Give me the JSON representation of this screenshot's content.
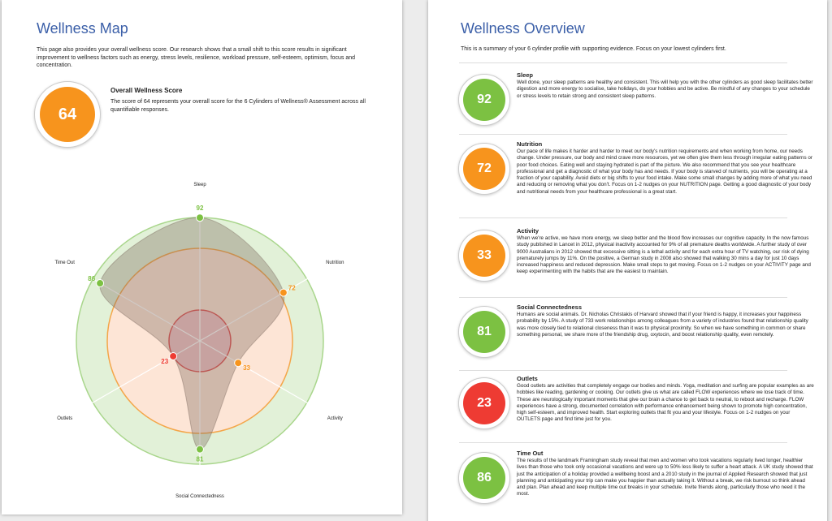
{
  "left": {
    "title": "Wellness Map",
    "intro": "This page also provides your overall wellness score. Our research shows that a small shift to this score results in significant improvement to wellness factors such as energy, stress levels, resilience, workload pressure, self-esteem, optimism, focus and concentration.",
    "score": {
      "value": "64",
      "color": "#f7941d",
      "heading": "Overall Wellness Score",
      "text": "The score of 64 represents your overall score for the 6 Cylinders of Wellness® Assessment across all quantifiable responses."
    }
  },
  "chart_data": {
    "type": "radar",
    "categories": [
      "Sleep",
      "Nutrition",
      "Activity",
      "Social Connectedness",
      "Outlets",
      "Time Out"
    ],
    "values": [
      92,
      72,
      33,
      81,
      23,
      86
    ],
    "point_colors": [
      "#7cc142",
      "#f7941d",
      "#f7941d",
      "#7cc142",
      "#ee3b33",
      "#7cc142"
    ],
    "rlim": [
      0,
      100
    ]
  },
  "right": {
    "title": "Wellness Overview",
    "intro": "This is a summary of your 6 cylinder profile with supporting evidence. Focus on your lowest cylinders first.",
    "items": [
      {
        "name": "Sleep",
        "score": "92",
        "color": "#7cc142",
        "text": "Well done, your sleep patterns are healthy and consistent. This will help you with the other cylinders as good sleep facilitates better digestion and more energy to socialise, take holidays, do your hobbies and be active. Be mindful of any changes to your schedule or stress levels to retain strong and consistent sleep patterns."
      },
      {
        "name": "Nutrition",
        "score": "72",
        "color": "#f7941d",
        "text": "Our pace of life makes it harder and harder to meet our body's nutrition requirements and when working from home, our needs change. Under pressure, our body and mind crave more resources, yet we often give them less through irregular eating patterns or poor food choices. Eating well and staying hydrated is part of the picture. We also recommend that you see your healthcare professional and get a diagnostic of what your body has and needs. If your body is starved of nutrients, you will be operating at a fraction of your capability. Avoid diets or big shifts to your food intake. Make some small changes by adding more of what you need and reducing or removing what you don't. Focus on 1-2 nudges on your NUTRITION page. Getting a good diagnostic of your body and nutritional needs from your healthcare professional is a great start."
      },
      {
        "name": "Activity",
        "score": "33",
        "color": "#f7941d",
        "text": "When we're active, we have more energy, we sleep better and the blood flow increases our cognitive capacity. In the now famous study published in Lancet in 2012, physical inactivity accounted for 9% of all premature deaths worldwide. A further study of over 9000 Australians in 2012 showed that excessive sitting is a lethal activity and for each extra hour of TV watching, our risk of dying prematurely jumps by 11%. On the positive, a German study in 2008 also showed that walking 30 mins a day for just 10 days increased happiness and reduced depression. Make small steps to get moving. Focus on 1-2 nudges on your ACTIVITY page and keep experimenting with the habits that are the easiest to maintain."
      },
      {
        "name": "Social Connectedness",
        "score": "81",
        "color": "#7cc142",
        "text": "Humans are social animals. Dr. Nicholas Christakis of Harvard showed that if your friend is happy, it increases your happiness probability by 15%. A study of 733 work relationships among colleagues from a variety of industries found that relationship quality was more closely tied to relational closeness than it was to physical proximity. So when we have something in common or share something personal, we share more of the friendship drug, oxytocin, and boost relationship quality, even remotely."
      },
      {
        "name": "Outlets",
        "score": "23",
        "color": "#ee3b33",
        "text": "Good outlets are activities that completely engage our bodies and minds. Yoga, meditation and surfing are popular examples as are hobbies like reading, gardening or cooking. Our outlets give us what are called FLOW experiences where we lose track of time. These are neurologically important moments that give our brain a chance to get back to neutral, to reboot and recharge. FLOW experiences have a strong, documented correlation with performance enhancement being shown to promote high concentration, high self-esteem, and improved health. Start exploring outlets that fit you and your lifestyle. Focus on 1-2 nudges on your OUTLETS page and find time just for you."
      },
      {
        "name": "Time Out",
        "score": "86",
        "color": "#7cc142",
        "text": "The results of the landmark Framingham study reveal that men and women who took vacations regularly lived longer, healthier lives than those who took only occasional vacations and were up to 50% less likely to suffer a heart attack. A UK study showed that just the anticipation of a holiday provided a wellbeing boost and a 2010 study in the journal of Applied Research showed that just planning and anticipating your trip can make you happier than actually taking it.  Without a break, we risk burnout so think ahead and plan. Plan ahead and keep multiple time out breaks in your schedule. Invite friends along, particularly those who need it the most."
      }
    ]
  }
}
